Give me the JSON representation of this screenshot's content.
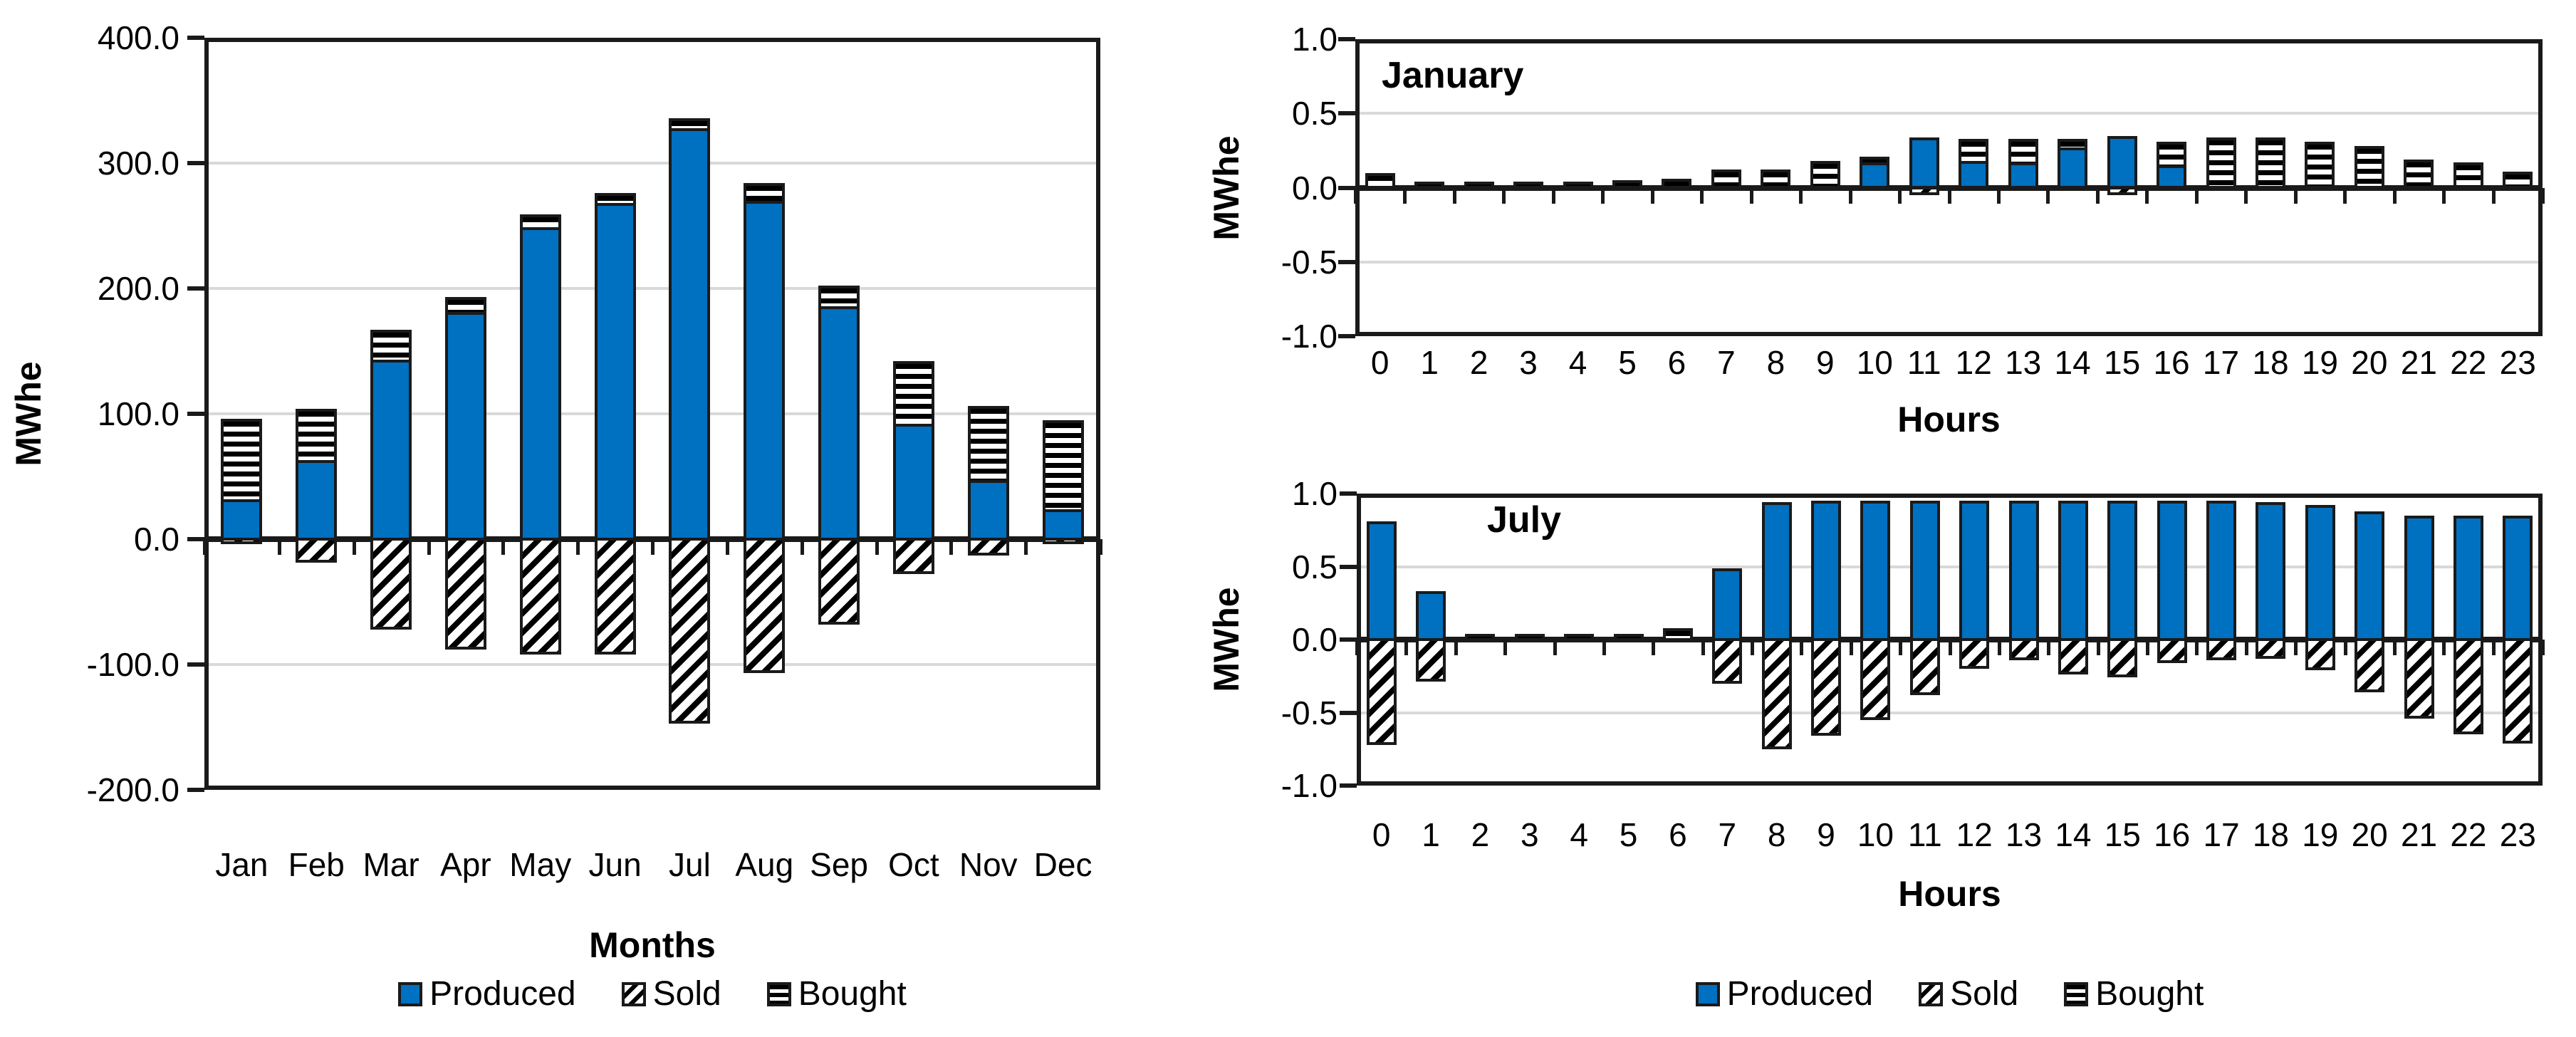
{
  "colors": {
    "produced": "#0070C0",
    "outline": "#1A1A1A",
    "gridline": "#D9D9D9",
    "background": "#FFFFFF"
  },
  "legend": {
    "items": [
      {
        "key": "produced",
        "label": "Produced"
      },
      {
        "key": "sold",
        "label": "Sold"
      },
      {
        "key": "bought",
        "label": "Bought"
      }
    ]
  },
  "chart_data": [
    {
      "id": "monthly",
      "type": "bar",
      "stacked": true,
      "inner_title": "",
      "xlabel": "Months",
      "ylabel": "MWhe",
      "categories": [
        "Jan",
        "Feb",
        "Mar",
        "Apr",
        "May",
        "Jun",
        "Jul",
        "Aug",
        "Sep",
        "Oct",
        "Nov",
        "Dec"
      ],
      "ylim": [
        -200,
        400
      ],
      "yticks": [
        400,
        300,
        200,
        100,
        0,
        -100,
        -200
      ],
      "grid": true,
      "legend_position": "bottom",
      "series": [
        {
          "name": "Produced",
          "key": "produced",
          "values": [
            32,
            63,
            143,
            181,
            249,
            268,
            328,
            270,
            186,
            92,
            47,
            24
          ]
        },
        {
          "name": "Sold",
          "key": "sold",
          "values": [
            -4,
            -19,
            -72,
            -88,
            -92,
            -92,
            -147,
            -107,
            -68,
            -28,
            -13,
            -4
          ]
        },
        {
          "name": "Bought",
          "key": "bought",
          "values": [
            64,
            41,
            24,
            12,
            10,
            8,
            8,
            14,
            16,
            50,
            59,
            71
          ]
        }
      ]
    },
    {
      "id": "january",
      "type": "bar",
      "stacked": true,
      "inner_title": "January",
      "xlabel": "Hours",
      "ylabel": "MWhe",
      "categories": [
        "0",
        "1",
        "2",
        "3",
        "4",
        "5",
        "6",
        "7",
        "8",
        "9",
        "10",
        "11",
        "12",
        "13",
        "14",
        "15",
        "16",
        "17",
        "18",
        "19",
        "20",
        "21",
        "22",
        "23"
      ],
      "ylim": [
        -1.0,
        1.0
      ],
      "yticks": [
        1.0,
        0.5,
        0.0,
        -0.5,
        -1.0
      ],
      "grid": true,
      "legend_position": "bottom",
      "series": [
        {
          "name": "Produced",
          "key": "produced",
          "values": [
            0,
            0,
            0,
            0,
            0,
            0,
            0,
            0,
            0,
            0,
            0.17,
            0.34,
            0.18,
            0.17,
            0.27,
            0.35,
            0.15,
            0,
            0,
            0,
            0,
            0,
            0,
            0
          ]
        },
        {
          "name": "Sold",
          "key": "sold",
          "values": [
            0,
            0,
            0,
            0,
            0,
            0,
            0,
            0,
            0,
            0,
            0,
            -0.05,
            0,
            0,
            0,
            -0.05,
            0,
            0,
            0,
            0,
            0,
            0,
            0,
            0
          ]
        },
        {
          "name": "Bought",
          "key": "bought",
          "values": [
            0.1,
            0.04,
            0.04,
            0.04,
            0.04,
            0.05,
            0.06,
            0.12,
            0.12,
            0.18,
            0.04,
            0,
            0.15,
            0.16,
            0.06,
            0,
            0.16,
            0.34,
            0.34,
            0.31,
            0.28,
            0.19,
            0.17,
            0.11
          ]
        }
      ]
    },
    {
      "id": "july",
      "type": "bar",
      "stacked": true,
      "inner_title": "July",
      "xlabel": "Hours",
      "ylabel": "MWhe",
      "categories": [
        "0",
        "1",
        "2",
        "3",
        "4",
        "5",
        "6",
        "7",
        "8",
        "9",
        "10",
        "11",
        "12",
        "13",
        "14",
        "15",
        "16",
        "17",
        "18",
        "19",
        "20",
        "21",
        "22",
        "23"
      ],
      "ylim": [
        -1.0,
        1.0
      ],
      "yticks": [
        1.0,
        0.5,
        0.0,
        -0.5,
        -1.0
      ],
      "grid": true,
      "legend_position": "bottom",
      "series": [
        {
          "name": "Produced",
          "key": "produced",
          "values": [
            0.81,
            0.33,
            0,
            0,
            0,
            0,
            0,
            0.49,
            0.94,
            0.95,
            0.95,
            0.95,
            0.95,
            0.95,
            0.95,
            0.95,
            0.95,
            0.95,
            0.94,
            0.92,
            0.88,
            0.85,
            0.85,
            0.85
          ]
        },
        {
          "name": "Sold",
          "key": "sold",
          "values": [
            -0.72,
            -0.29,
            0,
            0,
            0,
            0,
            0,
            -0.3,
            -0.75,
            -0.66,
            -0.55,
            -0.38,
            -0.2,
            -0.14,
            -0.24,
            -0.26,
            -0.16,
            -0.14,
            -0.13,
            -0.21,
            -0.36,
            -0.54,
            -0.65,
            -0.71
          ]
        },
        {
          "name": "Bought",
          "key": "bought",
          "values": [
            0,
            0,
            0.04,
            0.04,
            0.04,
            0.04,
            0.08,
            0,
            0,
            0,
            0,
            0,
            0,
            0,
            0,
            0,
            0,
            0,
            0,
            0,
            0,
            0,
            0,
            0
          ]
        }
      ]
    }
  ]
}
